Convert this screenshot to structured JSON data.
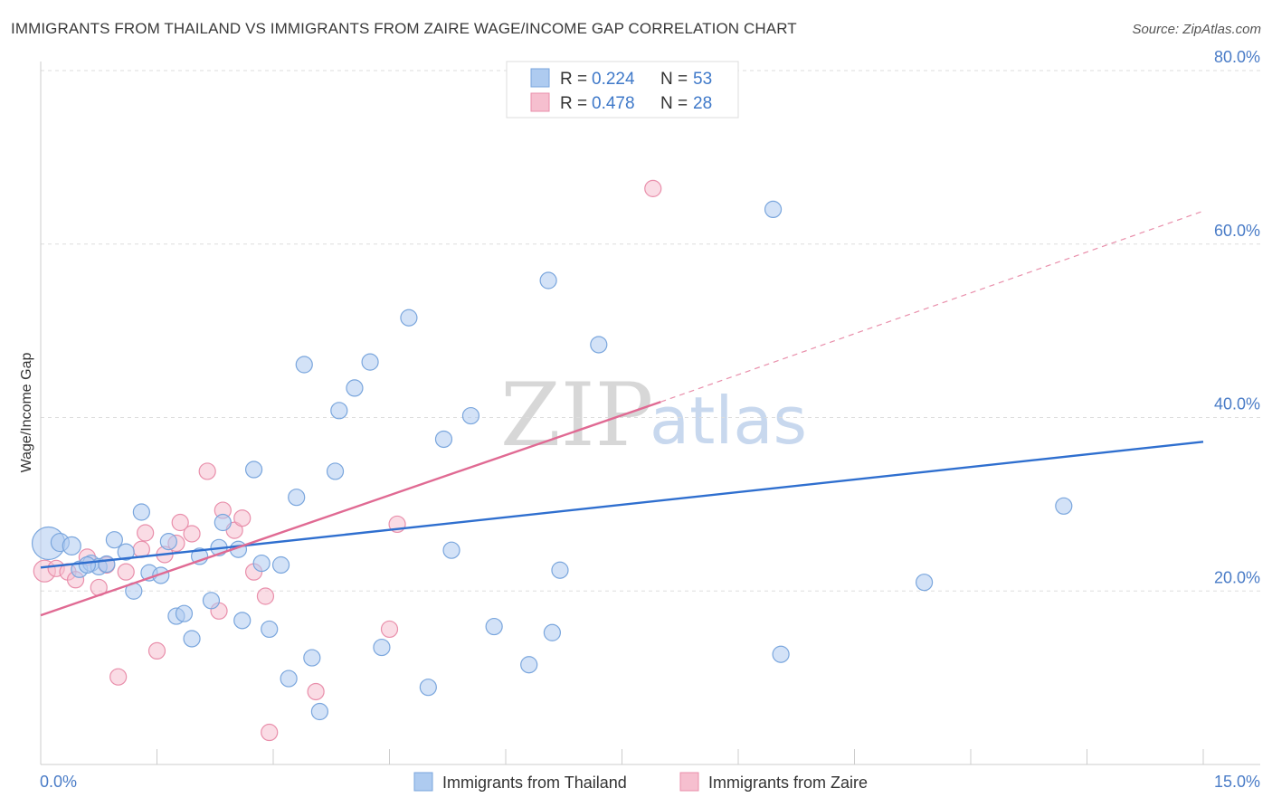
{
  "title": "IMMIGRANTS FROM THAILAND VS IMMIGRANTS FROM ZAIRE WAGE/INCOME GAP CORRELATION CHART",
  "source": "Source: ZipAtlas.com",
  "watermark": {
    "zip": "ZIP",
    "atlas": "atlas"
  },
  "colors": {
    "thailand_fill": "#aecbf0",
    "thailand_stroke": "#7aa6dd",
    "thailand_line": "#2f6fcf",
    "zaire_fill": "#f6bfcf",
    "zaire_stroke": "#e98fab",
    "zaire_line": "#e06a93",
    "axis_text": "#4a7cc7",
    "grid": "#dddddd"
  },
  "legend": {
    "rows": [
      {
        "r_label": "R =",
        "r_value": "0.224",
        "n_label": "N =",
        "n_value": "53"
      },
      {
        "r_label": "R =",
        "r_value": "0.478",
        "n_label": "N =",
        "n_value": "28"
      }
    ]
  },
  "chart_data": {
    "type": "scatter",
    "title": "IMMIGRANTS FROM THAILAND VS IMMIGRANTS FROM ZAIRE WAGE/INCOME GAP CORRELATION CHART",
    "xlabel": "",
    "ylabel": "Wage/Income Gap",
    "xlim": [
      0,
      15
    ],
    "ylim": [
      0,
      80
    ],
    "x_tick_labels": [
      "0.0%",
      "15.0%"
    ],
    "y_tick_values": [
      20,
      40,
      60,
      80
    ],
    "y_tick_labels": [
      "20.0%",
      "40.0%",
      "60.0%",
      "80.0%"
    ],
    "grid": true,
    "series": [
      {
        "name": "Immigrants from Thailand",
        "r": 0.224,
        "n": 53,
        "trend": {
          "x0": 0,
          "y0": 22.7,
          "x1": 15,
          "y1": 37.2
        },
        "points": [
          [
            0.1,
            25.5,
            18
          ],
          [
            0.25,
            25.6,
            10
          ],
          [
            0.4,
            25.2,
            10
          ],
          [
            0.5,
            22.5,
            9
          ],
          [
            0.65,
            23.2,
            9
          ],
          [
            0.75,
            22.8,
            9
          ],
          [
            0.85,
            23.1,
            9
          ],
          [
            0.95,
            25.9,
            9
          ],
          [
            1.1,
            24.5,
            9
          ],
          [
            1.2,
            20.0,
            9
          ],
          [
            1.3,
            29.1,
            9
          ],
          [
            1.4,
            22.1,
            9
          ],
          [
            1.55,
            21.8,
            9
          ],
          [
            1.65,
            25.7,
            9
          ],
          [
            1.75,
            17.1,
            9
          ],
          [
            1.85,
            17.4,
            9
          ],
          [
            1.95,
            14.5,
            9
          ],
          [
            2.05,
            24.0,
            9
          ],
          [
            2.2,
            18.9,
            9
          ],
          [
            2.3,
            25.0,
            9
          ],
          [
            2.35,
            27.9,
            9
          ],
          [
            2.55,
            24.8,
            9
          ],
          [
            2.6,
            16.6,
            9
          ],
          [
            2.75,
            34.0,
            9
          ],
          [
            2.85,
            23.2,
            9
          ],
          [
            2.95,
            15.6,
            9
          ],
          [
            3.1,
            23.0,
            9
          ],
          [
            3.2,
            9.9,
            9
          ],
          [
            3.3,
            30.8,
            9
          ],
          [
            3.4,
            46.1,
            9
          ],
          [
            3.5,
            12.3,
            9
          ],
          [
            3.6,
            6.1,
            9
          ],
          [
            3.8,
            33.8,
            9
          ],
          [
            3.85,
            40.8,
            9
          ],
          [
            4.05,
            43.4,
            9
          ],
          [
            4.25,
            46.4,
            9
          ],
          [
            4.4,
            13.5,
            9
          ],
          [
            4.75,
            51.5,
            9
          ],
          [
            5.0,
            8.9,
            9
          ],
          [
            5.2,
            37.5,
            9
          ],
          [
            5.3,
            24.7,
            9
          ],
          [
            5.55,
            40.2,
            9
          ],
          [
            5.85,
            15.9,
            9
          ],
          [
            6.3,
            11.5,
            9
          ],
          [
            6.55,
            55.8,
            9
          ],
          [
            6.6,
            15.2,
            9
          ],
          [
            6.7,
            22.4,
            9
          ],
          [
            7.2,
            48.4,
            9
          ],
          [
            9.45,
            64.0,
            9
          ],
          [
            9.55,
            12.7,
            9
          ],
          [
            11.4,
            21.0,
            9
          ],
          [
            13.2,
            29.8,
            9
          ],
          [
            0.6,
            23.0,
            9
          ]
        ]
      },
      {
        "name": "Immigrants from Zaire",
        "r": 0.478,
        "n": 28,
        "trend": {
          "x0": 0,
          "y0": 17.2,
          "x1": 8.0,
          "y1": 41.8
        },
        "trend_extension": {
          "x0": 8.0,
          "y0": 41.8,
          "x1": 15,
          "y1": 63.8
        },
        "points": [
          [
            0.05,
            22.3,
            12
          ],
          [
            0.2,
            22.6,
            9
          ],
          [
            0.35,
            22.2,
            9
          ],
          [
            0.45,
            21.3,
            9
          ],
          [
            0.6,
            23.9,
            9
          ],
          [
            0.75,
            20.4,
            9
          ],
          [
            0.85,
            23.0,
            9
          ],
          [
            1.0,
            10.1,
            9
          ],
          [
            1.1,
            22.2,
            9
          ],
          [
            1.3,
            24.8,
            9
          ],
          [
            1.35,
            26.7,
            9
          ],
          [
            1.5,
            13.1,
            9
          ],
          [
            1.6,
            24.2,
            9
          ],
          [
            1.75,
            25.5,
            9
          ],
          [
            1.8,
            27.9,
            9
          ],
          [
            1.95,
            26.6,
            9
          ],
          [
            2.15,
            33.8,
            9
          ],
          [
            2.3,
            17.7,
            9
          ],
          [
            2.35,
            29.3,
            9
          ],
          [
            2.5,
            27.0,
            9
          ],
          [
            2.6,
            28.4,
            9
          ],
          [
            2.75,
            22.2,
            9
          ],
          [
            2.9,
            19.4,
            9
          ],
          [
            2.95,
            3.7,
            9
          ],
          [
            3.55,
            8.4,
            9
          ],
          [
            4.5,
            15.6,
            9
          ],
          [
            4.6,
            27.7,
            9
          ],
          [
            7.9,
            66.4,
            9
          ]
        ]
      }
    ]
  },
  "bottom_legend": [
    "Immigrants from Thailand",
    "Immigrants from Zaire"
  ]
}
